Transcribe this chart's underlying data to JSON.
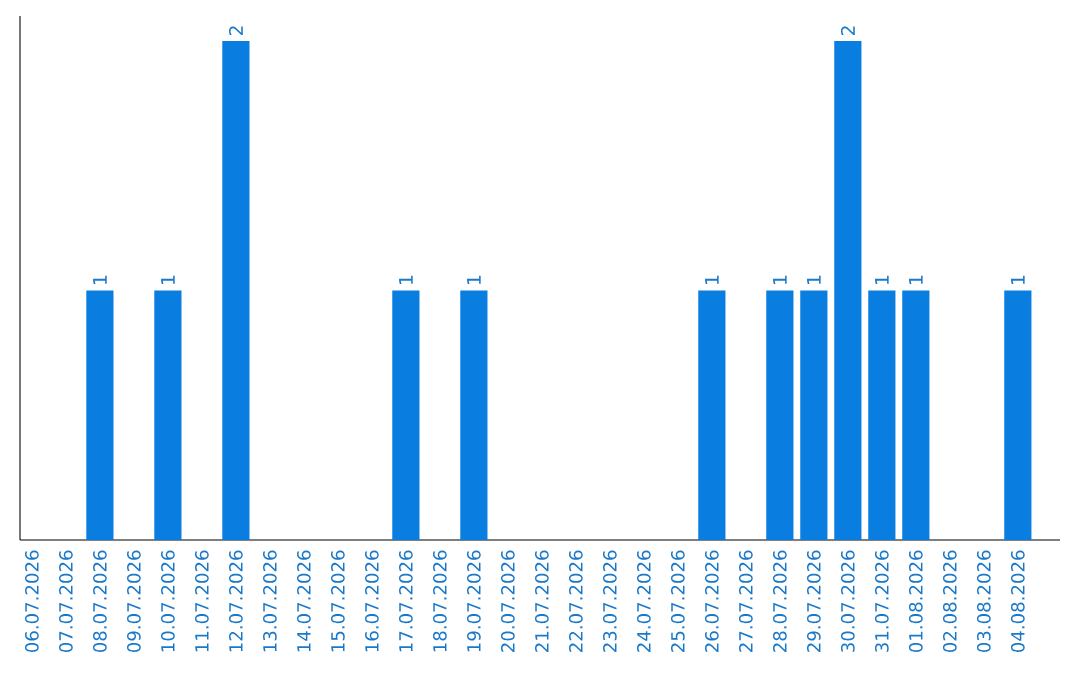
{
  "chart_data": {
    "type": "bar",
    "categories": [
      "06.07.2026",
      "07.07.2026",
      "08.07.2026",
      "09.07.2026",
      "10.07.2026",
      "11.07.2026",
      "12.07.2026",
      "13.07.2026",
      "14.07.2026",
      "15.07.2026",
      "16.07.2026",
      "17.07.2026",
      "18.07.2026",
      "19.07.2026",
      "20.07.2026",
      "21.07.2026",
      "22.07.2026",
      "23.07.2026",
      "24.07.2026",
      "25.07.2026",
      "26.07.2026",
      "27.07.2026",
      "28.07.2026",
      "29.07.2026",
      "30.07.2026",
      "31.07.2026",
      "01.08.2026",
      "02.08.2026",
      "03.08.2026",
      "04.08.2026"
    ],
    "values": [
      0,
      0,
      1,
      0,
      1,
      0,
      2,
      0,
      0,
      0,
      0,
      1,
      0,
      1,
      0,
      0,
      0,
      0,
      0,
      0,
      1,
      0,
      1,
      1,
      2,
      1,
      1,
      0,
      0,
      1
    ],
    "value_labels": [
      null,
      null,
      "1",
      null,
      "1",
      null,
      "2",
      null,
      null,
      null,
      null,
      "1",
      null,
      "1",
      null,
      null,
      null,
      null,
      null,
      null,
      "1",
      null,
      "1",
      "1",
      "2",
      "1",
      "1",
      null,
      null,
      "1"
    ],
    "color": "#0a7de0",
    "ylim": [
      0,
      2.1
    ]
  }
}
